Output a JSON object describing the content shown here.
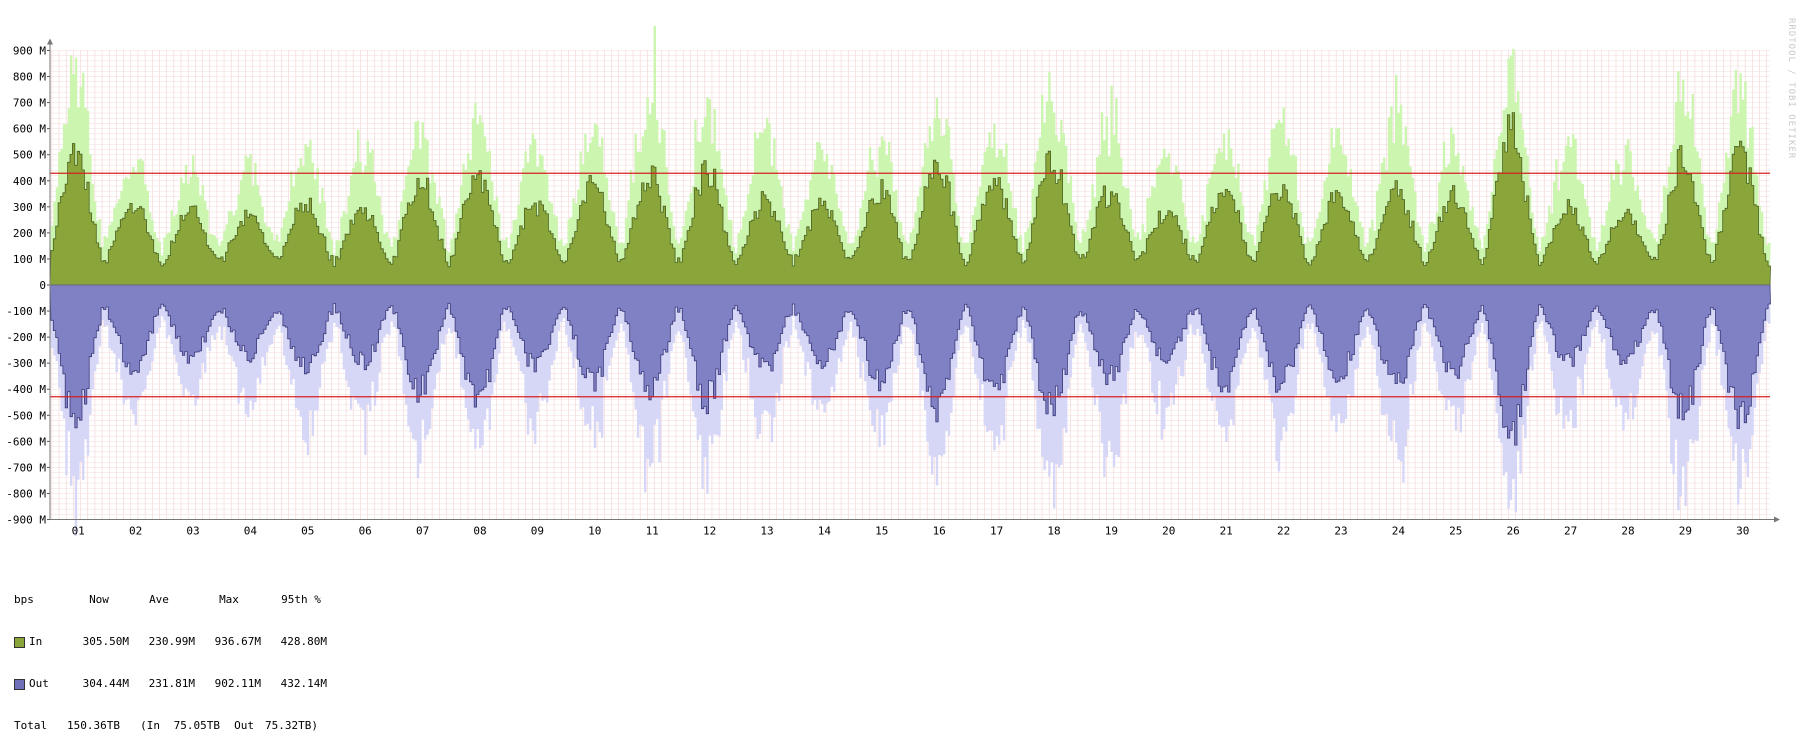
{
  "watermark": "RRDTOOL / TOBI OETIKER",
  "chart_data": {
    "type": "area",
    "unit": "bps",
    "ylim": [
      -900,
      900
    ],
    "y_ticks": [
      "900 M",
      "800 M",
      "700 M",
      "600 M",
      "500 M",
      "400 M",
      "300 M",
      "200 M",
      "100 M",
      "0",
      "-100 M",
      "-200 M",
      "-300 M",
      "-400 M",
      "-500 M",
      "-600 M",
      "-700 M",
      "-800 M",
      "-900 M"
    ],
    "x_ticks": [
      "01",
      "02",
      "03",
      "04",
      "05",
      "06",
      "07",
      "08",
      "09",
      "10",
      "11",
      "12",
      "13",
      "14",
      "15",
      "16",
      "17",
      "18",
      "19",
      "20",
      "21",
      "22",
      "23",
      "24",
      "25",
      "26",
      "27",
      "28",
      "29",
      "30"
    ],
    "percentile_95_M": 428.8,
    "colors": {
      "in_avg": "#8aa63a",
      "in_max": "#ccf5b0",
      "out_avg": "#8080c4",
      "out_max": "#d6d6f7",
      "percentile": "#d62020"
    },
    "daily": [
      {
        "day": "01",
        "in_avg_peak": 530,
        "in_max_peak": 880,
        "out_avg_peak": 540,
        "out_max_peak": 880
      },
      {
        "day": "02",
        "in_avg_peak": 330,
        "in_max_peak": 480,
        "out_avg_peak": 330,
        "out_max_peak": 490
      },
      {
        "day": "03",
        "in_avg_peak": 300,
        "in_max_peak": 440,
        "out_avg_peak": 300,
        "out_max_peak": 440
      },
      {
        "day": "04",
        "in_avg_peak": 280,
        "in_max_peak": 460,
        "out_avg_peak": 280,
        "out_max_peak": 460
      },
      {
        "day": "05",
        "in_avg_peak": 330,
        "in_max_peak": 600,
        "out_avg_peak": 340,
        "out_max_peak": 600
      },
      {
        "day": "06",
        "in_avg_peak": 310,
        "in_max_peak": 560,
        "out_avg_peak": 310,
        "out_max_peak": 560
      },
      {
        "day": "07",
        "in_avg_peak": 430,
        "in_max_peak": 650,
        "out_avg_peak": 430,
        "out_max_peak": 650
      },
      {
        "day": "08",
        "in_avg_peak": 450,
        "in_max_peak": 660,
        "out_avg_peak": 460,
        "out_max_peak": 660
      },
      {
        "day": "09",
        "in_avg_peak": 330,
        "in_max_peak": 560,
        "out_avg_peak": 330,
        "out_max_peak": 560
      },
      {
        "day": "10",
        "in_avg_peak": 400,
        "in_max_peak": 600,
        "out_avg_peak": 400,
        "out_max_peak": 600
      },
      {
        "day": "11",
        "in_avg_peak": 440,
        "in_max_peak": 930,
        "out_avg_peak": 440,
        "out_max_peak": 790
      },
      {
        "day": "12",
        "in_avg_peak": 460,
        "in_max_peak": 720,
        "out_avg_peak": 460,
        "out_max_peak": 720
      },
      {
        "day": "13",
        "in_avg_peak": 340,
        "in_max_peak": 640,
        "out_avg_peak": 340,
        "out_max_peak": 640
      },
      {
        "day": "14",
        "in_avg_peak": 320,
        "in_max_peak": 500,
        "out_avg_peak": 320,
        "out_max_peak": 500
      },
      {
        "day": "15",
        "in_avg_peak": 390,
        "in_max_peak": 560,
        "out_avg_peak": 390,
        "out_max_peak": 560
      },
      {
        "day": "16",
        "in_avg_peak": 490,
        "in_max_peak": 700,
        "out_avg_peak": 490,
        "out_max_peak": 700
      },
      {
        "day": "17",
        "in_avg_peak": 430,
        "in_max_peak": 620,
        "out_avg_peak": 430,
        "out_max_peak": 620
      },
      {
        "day": "18",
        "in_avg_peak": 500,
        "in_max_peak": 820,
        "out_avg_peak": 500,
        "out_max_peak": 820
      },
      {
        "day": "19",
        "in_avg_peak": 370,
        "in_max_peak": 740,
        "out_avg_peak": 370,
        "out_max_peak": 740
      },
      {
        "day": "20",
        "in_avg_peak": 300,
        "in_max_peak": 540,
        "out_avg_peak": 300,
        "out_max_peak": 540
      },
      {
        "day": "21",
        "in_avg_peak": 400,
        "in_max_peak": 580,
        "out_avg_peak": 400,
        "out_max_peak": 580
      },
      {
        "day": "22",
        "in_avg_peak": 400,
        "in_max_peak": 650,
        "out_avg_peak": 400,
        "out_max_peak": 650
      },
      {
        "day": "23",
        "in_avg_peak": 370,
        "in_max_peak": 560,
        "out_avg_peak": 370,
        "out_max_peak": 560
      },
      {
        "day": "24",
        "in_avg_peak": 400,
        "in_max_peak": 750,
        "out_avg_peak": 400,
        "out_max_peak": 750
      },
      {
        "day": "25",
        "in_avg_peak": 360,
        "in_max_peak": 560,
        "out_avg_peak": 360,
        "out_max_peak": 560
      },
      {
        "day": "26",
        "in_avg_peak": 620,
        "in_max_peak": 860,
        "out_avg_peak": 620,
        "out_max_peak": 860
      },
      {
        "day": "27",
        "in_avg_peak": 310,
        "in_max_peak": 560,
        "out_avg_peak": 310,
        "out_max_peak": 560
      },
      {
        "day": "28",
        "in_avg_peak": 300,
        "in_max_peak": 540,
        "out_avg_peak": 300,
        "out_max_peak": 540
      },
      {
        "day": "29",
        "in_avg_peak": 520,
        "in_max_peak": 860,
        "out_avg_peak": 520,
        "out_max_peak": 860
      },
      {
        "day": "30",
        "in_avg_peak": 530,
        "in_max_peak": 770,
        "out_avg_peak": 530,
        "out_max_peak": 770
      }
    ]
  },
  "legend": {
    "header": {
      "unit": "bps",
      "now": "Now",
      "ave": "Ave",
      "max": "Max",
      "p95": "95th %"
    },
    "in": {
      "label": "In",
      "now": "305.50M",
      "ave": "230.99M",
      "max": "936.67M",
      "p95": "428.80M"
    },
    "out": {
      "label": "Out",
      "now": "304.44M",
      "ave": "231.81M",
      "max": "902.11M",
      "p95": "432.14M"
    },
    "total": {
      "label": "Total",
      "total": "150.36TB",
      "in_part": "(In",
      "in_val": "75.05TB",
      "out_part": "Out",
      "out_val": "75.32TB)"
    }
  }
}
